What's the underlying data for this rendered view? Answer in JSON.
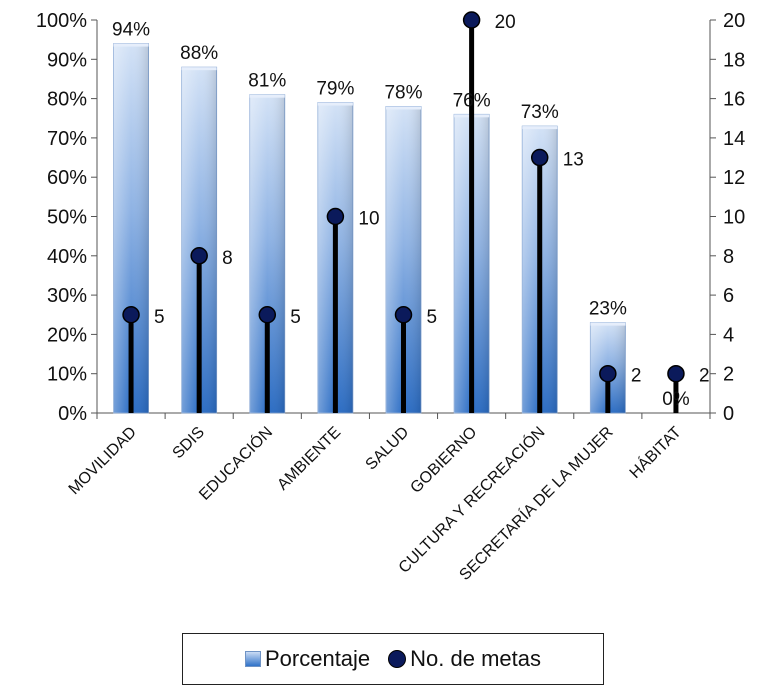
{
  "chart_data": {
    "type": "bar",
    "categories": [
      "MOVILIDAD",
      "SDIS",
      "EDUCACIÓN",
      "AMBIENTE",
      "SALUD",
      "GOBIERNO",
      "CULTURA Y RECREACIÓN",
      "SECRETARÍA DE LA MUJER",
      "HÁBITAT"
    ],
    "series": [
      {
        "name": "Porcentaje",
        "type": "bar",
        "axis": "left",
        "values": [
          94,
          88,
          81,
          79,
          78,
          76,
          73,
          23,
          0
        ],
        "labels": [
          "94%",
          "88%",
          "81%",
          "79%",
          "78%",
          "76%",
          "73%",
          "23%",
          "0%"
        ],
        "color": "#2f72c8"
      },
      {
        "name": "No. de metas",
        "type": "lollipop",
        "axis": "right",
        "values": [
          5,
          8,
          5,
          10,
          5,
          20,
          13,
          2,
          2
        ],
        "labels": [
          "5",
          "8",
          "5",
          "10",
          "5",
          "20",
          "13",
          "2",
          "2"
        ],
        "color": "#0b1a5b"
      }
    ],
    "y_left": {
      "ylim": [
        0,
        100
      ],
      "ticks": [
        "0%",
        "10%",
        "20%",
        "30%",
        "40%",
        "50%",
        "60%",
        "70%",
        "80%",
        "90%",
        "100%"
      ]
    },
    "y_right": {
      "ylim": [
        0,
        20
      ],
      "ticks": [
        "0",
        "2",
        "4",
        "6",
        "8",
        "10",
        "12",
        "14",
        "16",
        "18",
        "20"
      ]
    },
    "grid": false,
    "legend": {
      "position": "bottom",
      "entries": [
        "Porcentaje",
        "No. de metas"
      ]
    }
  }
}
